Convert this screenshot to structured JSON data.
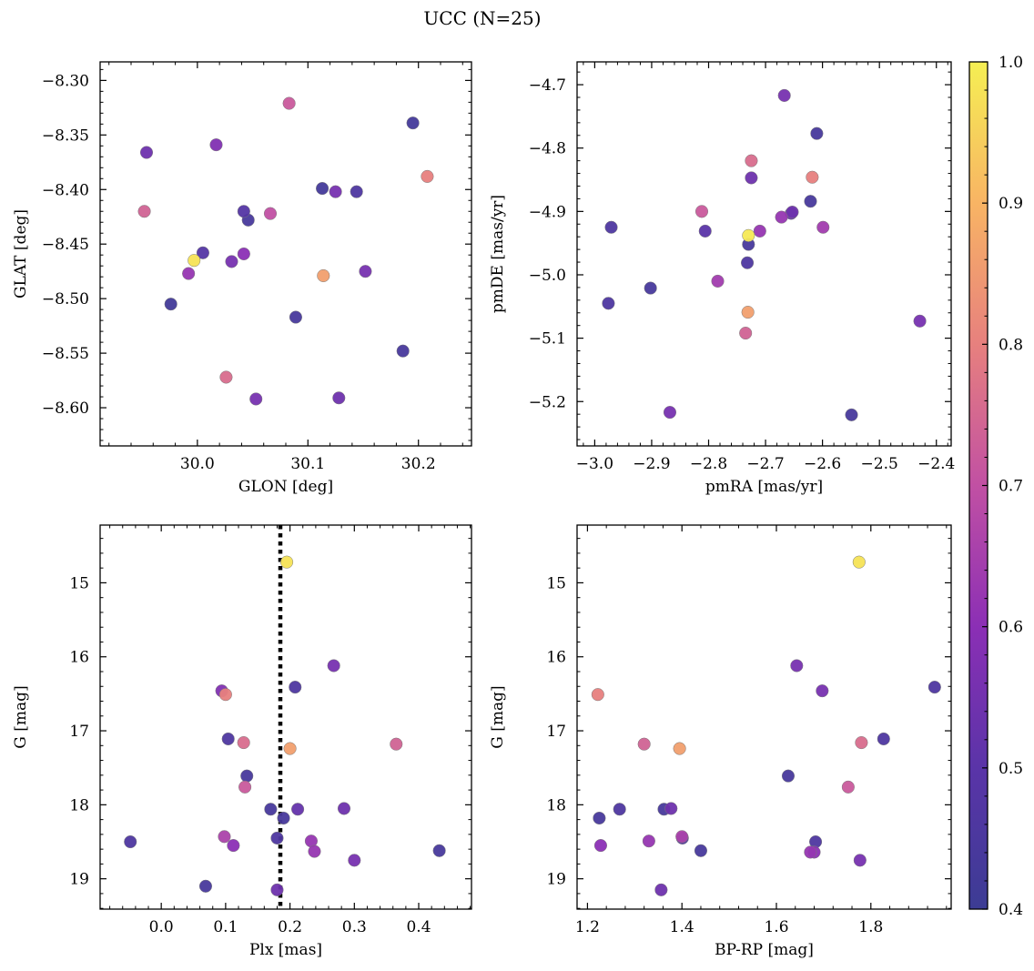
{
  "figure": {
    "title": "UCC (N=25)"
  },
  "colorbar": {
    "range": [
      0.4,
      1.0
    ],
    "ticks": [
      0.4,
      0.5,
      0.6,
      0.7,
      0.8,
      0.9,
      1.0
    ],
    "tick_labels": [
      "0.4",
      "0.5",
      "0.6",
      "0.7",
      "0.8",
      "0.9",
      "1.0"
    ],
    "colormap": "plasma",
    "colors": [
      "#3c3c94",
      "#5a34a8",
      "#8b2fb5",
      "#c150a3",
      "#e7807e",
      "#f8b464",
      "#f5ef53"
    ]
  },
  "chart_data": [
    {
      "type": "scatter",
      "id": "sky",
      "title": "",
      "xlabel": "GLON [deg]",
      "ylabel": "GLAT [deg]",
      "xlim": [
        29.912,
        30.248
      ],
      "ylim": [
        -8.635,
        -8.283
      ],
      "y_inverted": false,
      "x_ticks": [
        30.0,
        30.1,
        30.2
      ],
      "x_tick_labels": [
        "30.0",
        "30.1",
        "30.2"
      ],
      "y_ticks": [
        -8.3,
        -8.35,
        -8.4,
        -8.45,
        -8.5,
        -8.55,
        -8.6
      ],
      "y_tick_labels": [
        "−8.30",
        "−8.35",
        "−8.40",
        "−8.45",
        "−8.50",
        "−8.55",
        "−8.60"
      ],
      "points": [
        {
          "x": 29.954,
          "y": -8.366,
          "c": 0.54
        },
        {
          "x": 29.952,
          "y": -8.42,
          "c": 0.74
        },
        {
          "x": 29.976,
          "y": -8.505,
          "c": 0.42
        },
        {
          "x": 29.992,
          "y": -8.477,
          "c": 0.62
        },
        {
          "x": 29.997,
          "y": -8.465,
          "c": 0.98
        },
        {
          "x": 30.005,
          "y": -8.458,
          "c": 0.48
        },
        {
          "x": 30.017,
          "y": -8.359,
          "c": 0.58
        },
        {
          "x": 30.026,
          "y": -8.572,
          "c": 0.76
        },
        {
          "x": 30.031,
          "y": -8.466,
          "c": 0.56
        },
        {
          "x": 30.042,
          "y": -8.42,
          "c": 0.48
        },
        {
          "x": 30.042,
          "y": -8.459,
          "c": 0.6
        },
        {
          "x": 30.046,
          "y": -8.428,
          "c": 0.44
        },
        {
          "x": 30.053,
          "y": -8.592,
          "c": 0.56
        },
        {
          "x": 30.066,
          "y": -8.422,
          "c": 0.7
        },
        {
          "x": 30.083,
          "y": -8.321,
          "c": 0.72
        },
        {
          "x": 30.089,
          "y": -8.517,
          "c": 0.44
        },
        {
          "x": 30.113,
          "y": -8.399,
          "c": 0.43
        },
        {
          "x": 30.114,
          "y": -8.479,
          "c": 0.86
        },
        {
          "x": 30.125,
          "y": -8.402,
          "c": 0.56
        },
        {
          "x": 30.128,
          "y": -8.591,
          "c": 0.54
        },
        {
          "x": 30.144,
          "y": -8.402,
          "c": 0.46
        },
        {
          "x": 30.152,
          "y": -8.475,
          "c": 0.56
        },
        {
          "x": 30.186,
          "y": -8.548,
          "c": 0.44
        },
        {
          "x": 30.195,
          "y": -8.339,
          "c": 0.43
        },
        {
          "x": 30.208,
          "y": -8.388,
          "c": 0.8
        }
      ]
    },
    {
      "type": "scatter",
      "id": "pm",
      "title": "",
      "xlabel": "pmRA [mas/yr]",
      "ylabel": "pmDE [mas/yr]",
      "xlim": [
        -3.031,
        -2.374
      ],
      "ylim": [
        -5.27,
        -4.664
      ],
      "y_inverted": false,
      "x_ticks": [
        -3.0,
        -2.9,
        -2.8,
        -2.7,
        -2.6,
        -2.5,
        -2.4
      ],
      "x_tick_labels": [
        "−3.0",
        "−2.9",
        "−2.8",
        "−2.7",
        "−2.6",
        "−2.5",
        "−2.4"
      ],
      "y_ticks": [
        -4.7,
        -4.8,
        -4.9,
        -5.0,
        -5.1,
        -5.2
      ],
      "y_tick_labels": [
        "−4.7",
        "−4.8",
        "−4.9",
        "−5.0",
        "−5.1",
        "−5.2"
      ],
      "points": [
        {
          "x": -2.667,
          "y": -4.717,
          "c": 0.56
        },
        {
          "x": -2.61,
          "y": -4.777,
          "c": 0.44
        },
        {
          "x": -2.725,
          "y": -4.82,
          "c": 0.76
        },
        {
          "x": -2.618,
          "y": -4.846,
          "c": 0.8
        },
        {
          "x": -2.725,
          "y": -4.847,
          "c": 0.54
        },
        {
          "x": -2.621,
          "y": -4.884,
          "c": 0.44
        },
        {
          "x": -2.812,
          "y": -4.9,
          "c": 0.72
        },
        {
          "x": -2.653,
          "y": -4.901,
          "c": 0.54
        },
        {
          "x": -2.655,
          "y": -4.903,
          "c": 0.52
        },
        {
          "x": -2.672,
          "y": -4.909,
          "c": 0.62
        },
        {
          "x": -2.599,
          "y": -4.925,
          "c": 0.64
        },
        {
          "x": -2.971,
          "y": -4.925,
          "c": 0.46
        },
        {
          "x": -2.71,
          "y": -4.931,
          "c": 0.62
        },
        {
          "x": -2.806,
          "y": -4.931,
          "c": 0.5
        },
        {
          "x": -2.73,
          "y": -4.938,
          "c": 0.99
        },
        {
          "x": -2.73,
          "y": -4.952,
          "c": 0.44
        },
        {
          "x": -2.732,
          "y": -4.981,
          "c": 0.46
        },
        {
          "x": -2.784,
          "y": -5.01,
          "c": 0.64
        },
        {
          "x": -2.902,
          "y": -5.021,
          "c": 0.44
        },
        {
          "x": -2.976,
          "y": -5.045,
          "c": 0.46
        },
        {
          "x": -2.731,
          "y": -5.059,
          "c": 0.86
        },
        {
          "x": -2.429,
          "y": -5.073,
          "c": 0.56
        },
        {
          "x": -2.735,
          "y": -5.092,
          "c": 0.74
        },
        {
          "x": -2.868,
          "y": -5.217,
          "c": 0.56
        },
        {
          "x": -2.549,
          "y": -5.221,
          "c": 0.44
        }
      ]
    },
    {
      "type": "scatter",
      "id": "plx",
      "title": "",
      "xlabel": "Plx [mas]",
      "ylabel": "G [mag]",
      "xlim": [
        -0.095,
        0.482
      ],
      "ylim": [
        19.41,
        14.22
      ],
      "y_inverted": true,
      "vline": {
        "x": 0.185,
        "style": "dotted",
        "color": "#000000"
      },
      "x_ticks": [
        0.0,
        0.1,
        0.2,
        0.3,
        0.4
      ],
      "x_tick_labels": [
        "0.0",
        "0.1",
        "0.2",
        "0.3",
        "0.4"
      ],
      "y_ticks": [
        15,
        16,
        17,
        18,
        19
      ],
      "y_tick_labels": [
        "15",
        "16",
        "17",
        "18",
        "19"
      ],
      "points": [
        {
          "x": 0.195,
          "y": 14.72,
          "c": 0.98
        },
        {
          "x": 0.268,
          "y": 16.12,
          "c": 0.56
        },
        {
          "x": 0.208,
          "y": 16.41,
          "c": 0.46
        },
        {
          "x": 0.094,
          "y": 16.46,
          "c": 0.58
        },
        {
          "x": 0.1,
          "y": 16.51,
          "c": 0.8
        },
        {
          "x": 0.104,
          "y": 17.11,
          "c": 0.46
        },
        {
          "x": 0.128,
          "y": 17.16,
          "c": 0.76
        },
        {
          "x": 0.365,
          "y": 17.18,
          "c": 0.74
        },
        {
          "x": 0.2,
          "y": 17.24,
          "c": 0.86
        },
        {
          "x": 0.133,
          "y": 17.61,
          "c": 0.44
        },
        {
          "x": 0.13,
          "y": 17.76,
          "c": 0.72
        },
        {
          "x": 0.17,
          "y": 18.06,
          "c": 0.44
        },
        {
          "x": 0.212,
          "y": 18.06,
          "c": 0.52
        },
        {
          "x": 0.284,
          "y": 18.05,
          "c": 0.54
        },
        {
          "x": 0.19,
          "y": 18.18,
          "c": 0.44
        },
        {
          "x": 0.098,
          "y": 18.43,
          "c": 0.66
        },
        {
          "x": 0.18,
          "y": 18.45,
          "c": 0.46
        },
        {
          "x": 0.233,
          "y": 18.49,
          "c": 0.62
        },
        {
          "x": -0.048,
          "y": 18.5,
          "c": 0.46
        },
        {
          "x": 0.112,
          "y": 18.55,
          "c": 0.6
        },
        {
          "x": 0.238,
          "y": 18.63,
          "c": 0.62
        },
        {
          "x": 0.432,
          "y": 18.62,
          "c": 0.44
        },
        {
          "x": 0.3,
          "y": 18.75,
          "c": 0.56
        },
        {
          "x": 0.069,
          "y": 19.1,
          "c": 0.44
        },
        {
          "x": 0.18,
          "y": 19.15,
          "c": 0.54
        }
      ]
    },
    {
      "type": "scatter",
      "id": "cmd",
      "title": "",
      "xlabel": "BP-RP [mag]",
      "ylabel": "G [mag]",
      "xlim": [
        1.178,
        1.97
      ],
      "ylim": [
        19.41,
        14.22
      ],
      "y_inverted": true,
      "x_ticks": [
        1.2,
        1.4,
        1.6,
        1.8
      ],
      "x_tick_labels": [
        "1.2",
        "1.4",
        "1.6",
        "1.8"
      ],
      "y_ticks": [
        15,
        16,
        17,
        18,
        19
      ],
      "y_tick_labels": [
        "15",
        "16",
        "17",
        "18",
        "19"
      ],
      "points": [
        {
          "x": 1.775,
          "y": 14.72,
          "c": 0.98
        },
        {
          "x": 1.643,
          "y": 16.12,
          "c": 0.56
        },
        {
          "x": 1.935,
          "y": 16.41,
          "c": 0.46
        },
        {
          "x": 1.697,
          "y": 16.46,
          "c": 0.56
        },
        {
          "x": 1.222,
          "y": 16.51,
          "c": 0.8
        },
        {
          "x": 1.827,
          "y": 17.11,
          "c": 0.46
        },
        {
          "x": 1.32,
          "y": 17.18,
          "c": 0.74
        },
        {
          "x": 1.78,
          "y": 17.16,
          "c": 0.76
        },
        {
          "x": 1.395,
          "y": 17.24,
          "c": 0.86
        },
        {
          "x": 1.625,
          "y": 17.61,
          "c": 0.44
        },
        {
          "x": 1.752,
          "y": 17.76,
          "c": 0.72
        },
        {
          "x": 1.268,
          "y": 18.06,
          "c": 0.46
        },
        {
          "x": 1.362,
          "y": 18.06,
          "c": 0.44
        },
        {
          "x": 1.377,
          "y": 18.05,
          "c": 0.54
        },
        {
          "x": 1.225,
          "y": 18.18,
          "c": 0.44
        },
        {
          "x": 1.4,
          "y": 18.43,
          "c": 0.66
        },
        {
          "x": 1.401,
          "y": 18.45,
          "c": 0.46
        },
        {
          "x": 1.683,
          "y": 18.5,
          "c": 0.46
        },
        {
          "x": 1.33,
          "y": 18.49,
          "c": 0.62
        },
        {
          "x": 1.228,
          "y": 18.55,
          "c": 0.6
        },
        {
          "x": 1.672,
          "y": 18.64,
          "c": 0.62
        },
        {
          "x": 1.44,
          "y": 18.62,
          "c": 0.44
        },
        {
          "x": 1.777,
          "y": 18.75,
          "c": 0.56
        },
        {
          "x": 1.356,
          "y": 19.15,
          "c": 0.54
        },
        {
          "x": 1.68,
          "y": 18.64,
          "c": 0.6
        }
      ]
    }
  ]
}
